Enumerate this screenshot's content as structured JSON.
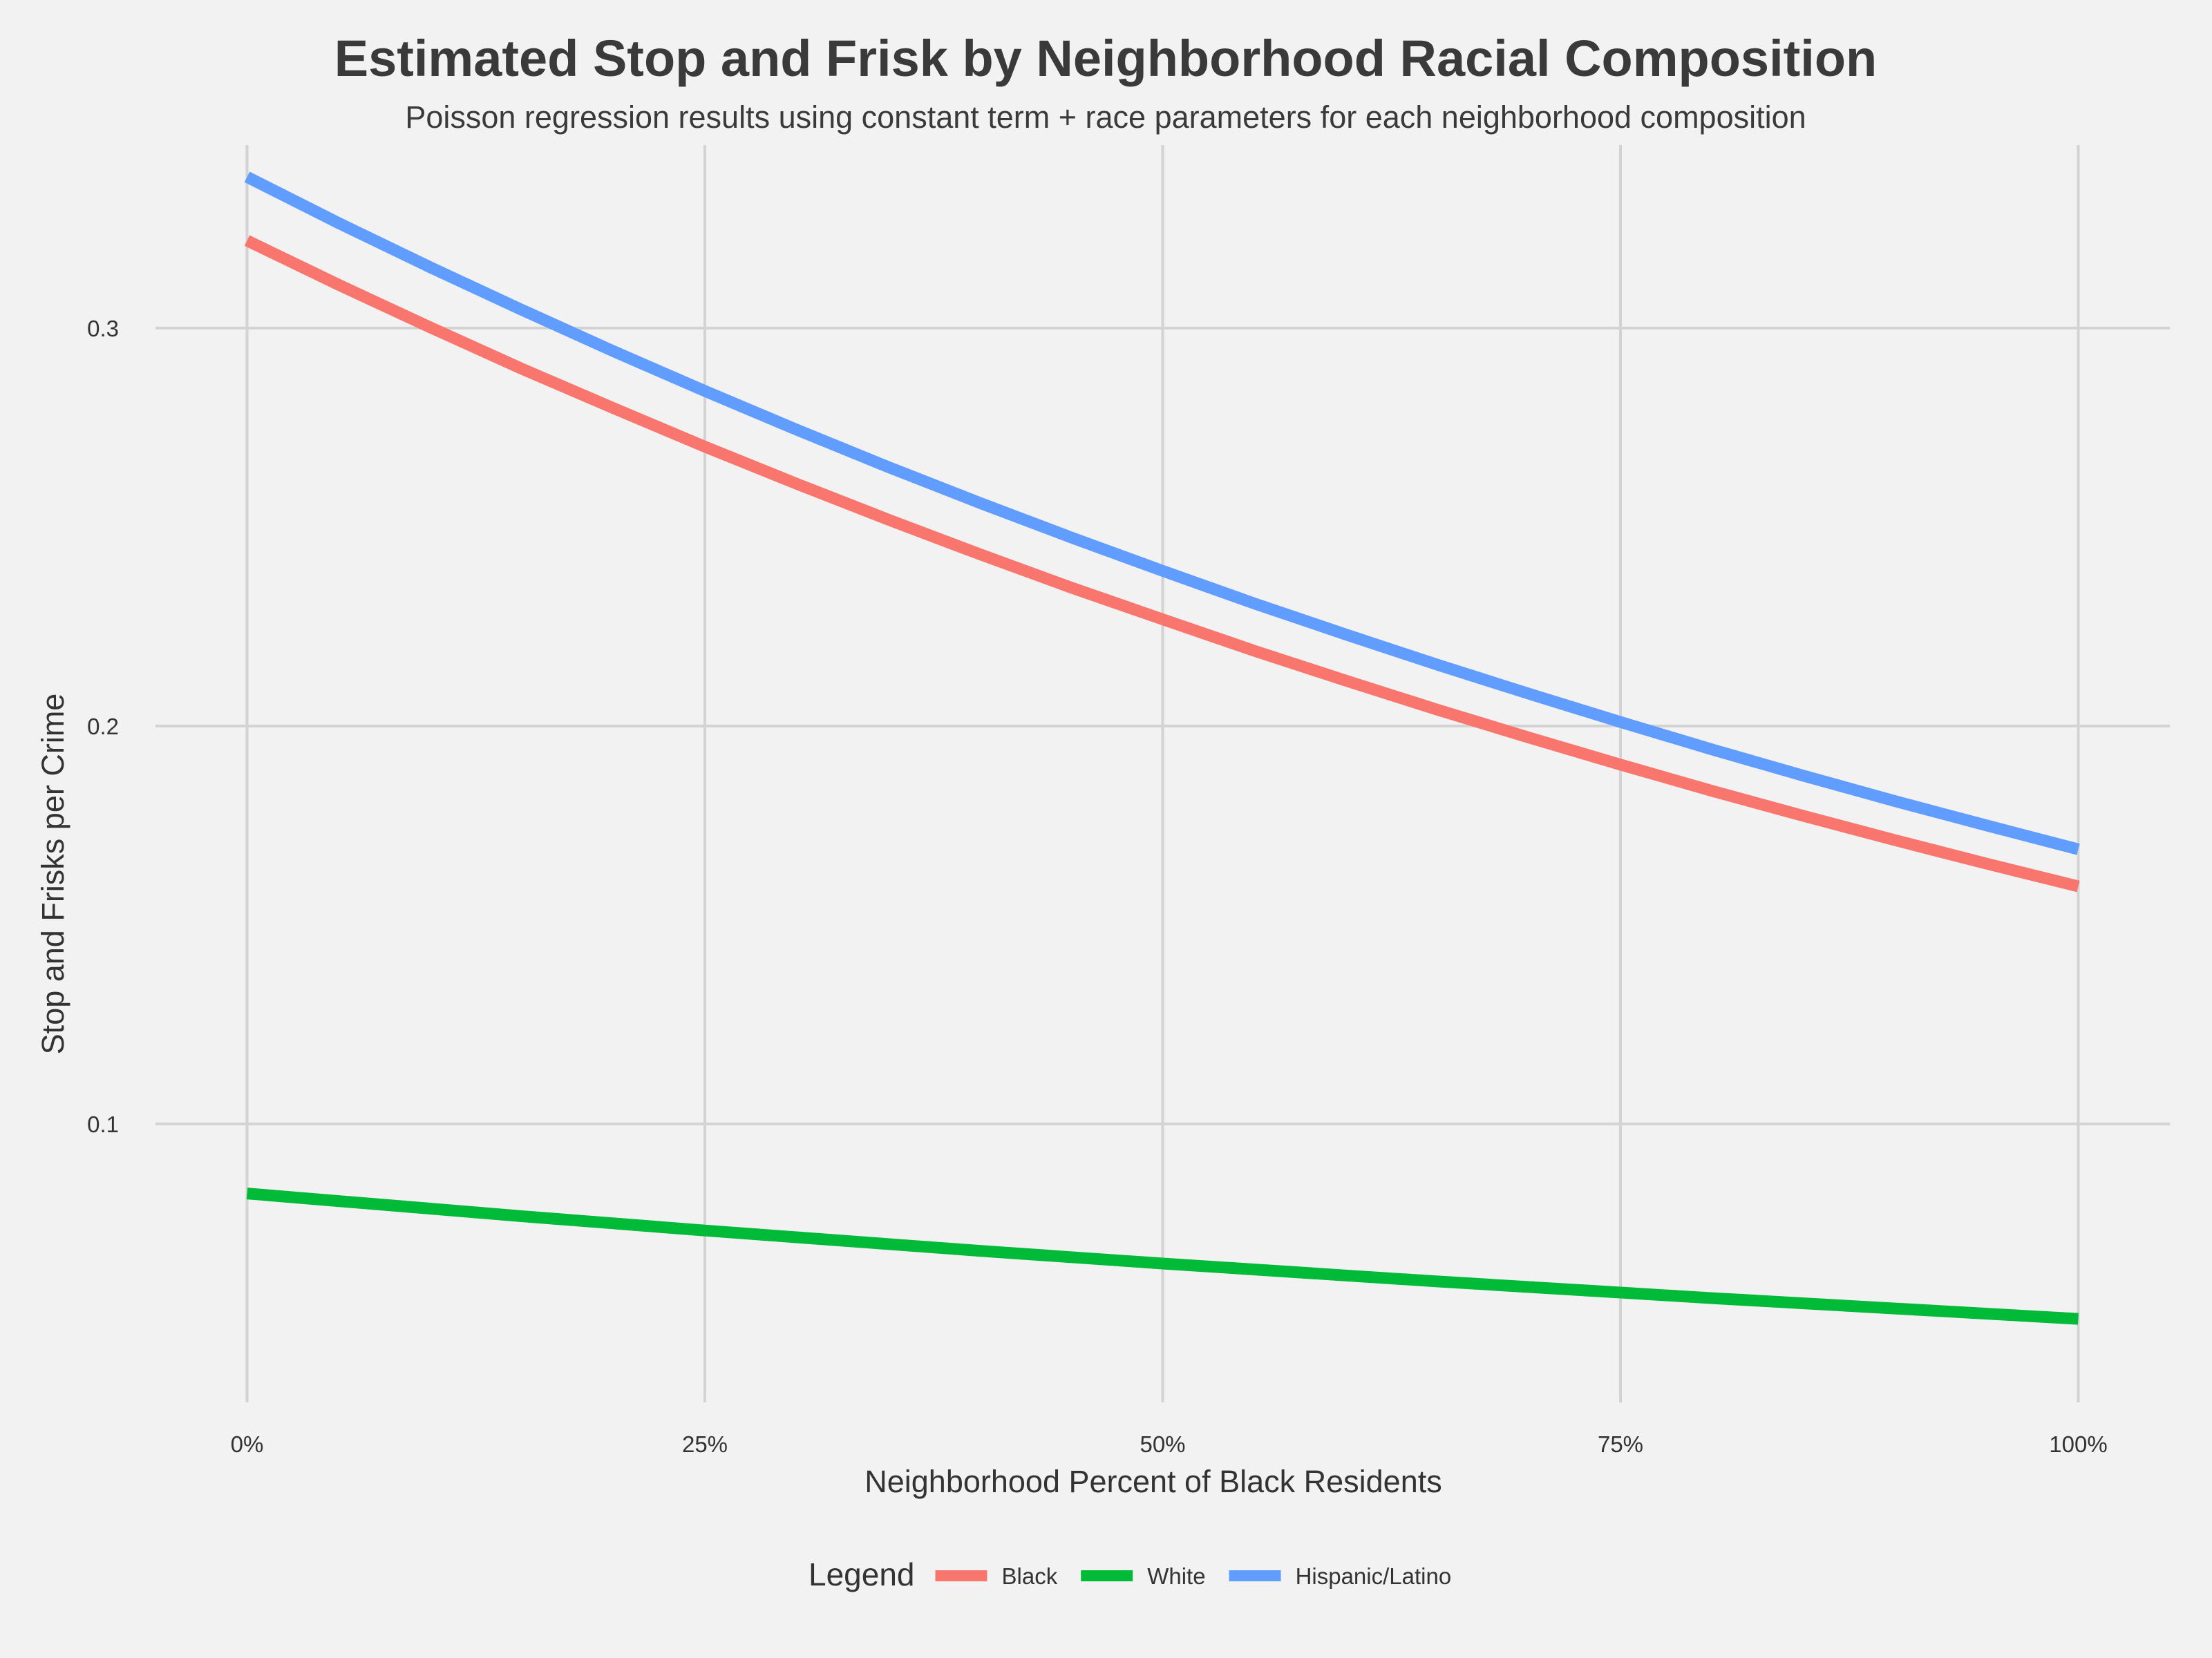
{
  "chart_data": {
    "type": "line",
    "title": "Estimated Stop and Frisk by Neighborhood Racial Composition",
    "subtitle": "Poisson regression results using constant term + race parameters for each neighborhood composition",
    "xlabel": "Neighborhood Percent of Black Residents",
    "ylabel": "Stop and Frisks per Crime",
    "x_ticks": [
      {
        "value": 0,
        "label": "0%"
      },
      {
        "value": 0.25,
        "label": "25%"
      },
      {
        "value": 0.5,
        "label": "50%"
      },
      {
        "value": 0.75,
        "label": "75%"
      },
      {
        "value": 1,
        "label": "100%"
      }
    ],
    "y_ticks": [
      {
        "value": 0.1,
        "label": "0.1"
      },
      {
        "value": 0.2,
        "label": "0.2"
      },
      {
        "value": 0.3,
        "label": "0.3"
      }
    ],
    "xlim": [
      -0.05,
      1.05
    ],
    "ylim": [
      0.03,
      0.346
    ],
    "grid": true,
    "legend": {
      "title": "Legend",
      "position": "bottom"
    },
    "x": [
      0,
      0.05,
      0.1,
      0.15,
      0.2,
      0.25,
      0.3,
      0.35,
      0.4,
      0.45,
      0.5,
      0.55,
      0.6,
      0.65,
      0.7,
      0.75,
      0.8,
      0.85,
      0.9,
      0.95,
      1.0
    ],
    "series": [
      {
        "name": "Black",
        "color": "#f8766d",
        "values": [
          0.322,
          0.3109,
          0.3002,
          0.2898,
          0.2799,
          0.2702,
          0.2609,
          0.2519,
          0.2432,
          0.2348,
          0.2268,
          0.2189,
          0.2114,
          0.2041,
          0.1971,
          0.1903,
          0.1837,
          0.1774,
          0.1713,
          0.1654,
          0.1597
        ]
      },
      {
        "name": "White",
        "color": "#00ba38",
        "values": [
          0.0825,
          0.0806,
          0.0787,
          0.0768,
          0.075,
          0.0732,
          0.0715,
          0.0698,
          0.0681,
          0.0665,
          0.0649,
          0.0634,
          0.0619,
          0.0604,
          0.059,
          0.0576,
          0.0562,
          0.0549,
          0.0536,
          0.0523,
          0.051
        ]
      },
      {
        "name": "Hispanic/Latino",
        "color": "#619cff",
        "values": [
          0.338,
          0.3264,
          0.3153,
          0.3046,
          0.2942,
          0.2842,
          0.2745,
          0.2651,
          0.2561,
          0.2474,
          0.239,
          0.2308,
          0.223,
          0.2154,
          0.2081,
          0.201,
          0.1941,
          0.1875,
          0.1811,
          0.175,
          0.169
        ]
      }
    ]
  }
}
